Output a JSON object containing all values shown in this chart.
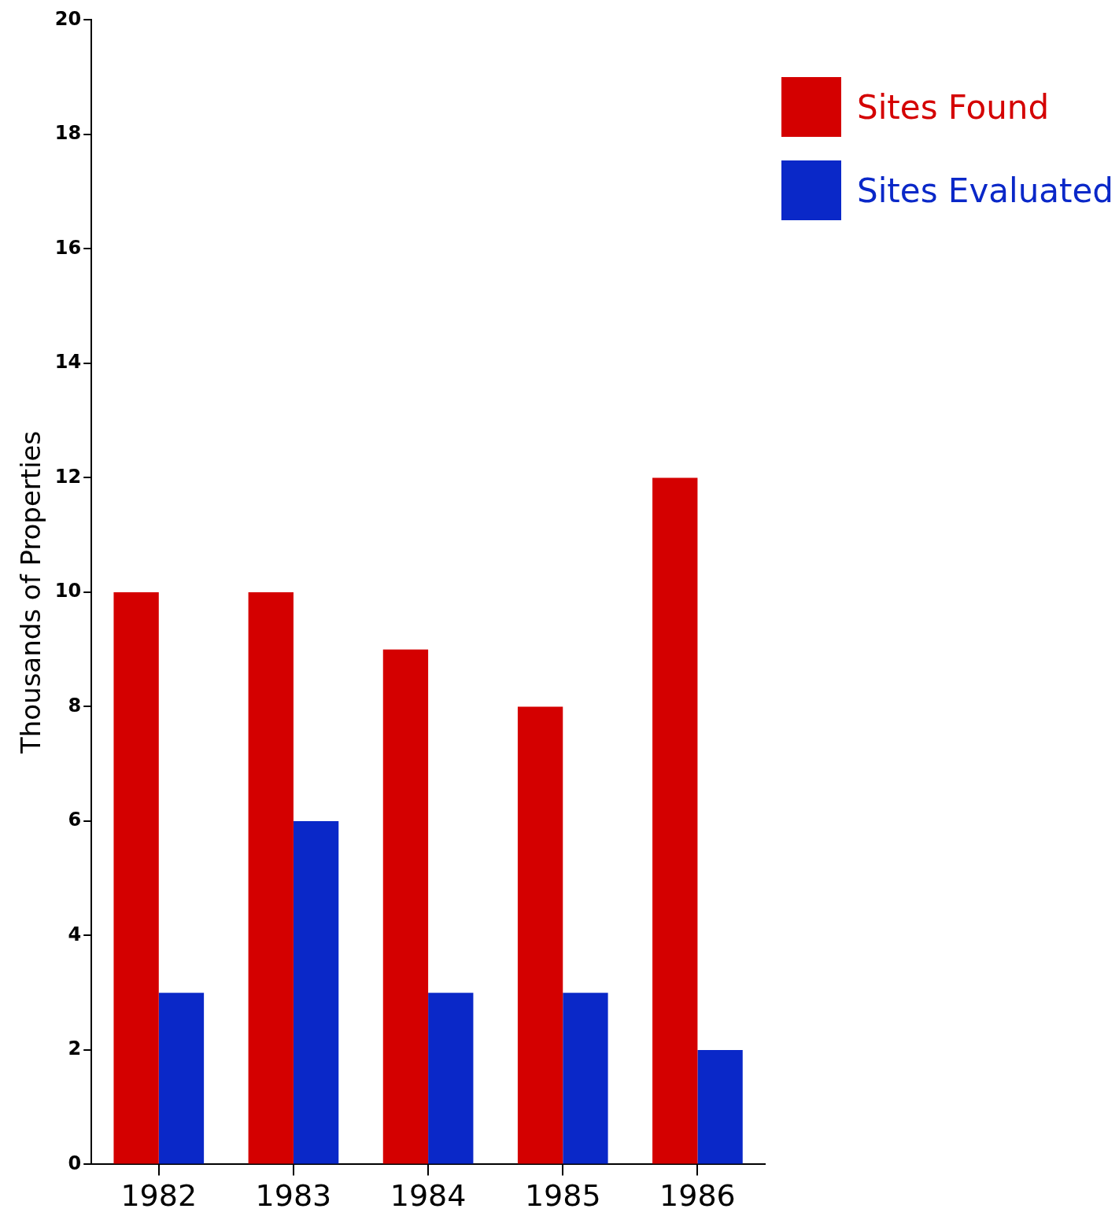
{
  "chart_data": {
    "type": "bar",
    "ylabel": "Thousands of Properties",
    "categories": [
      "1982",
      "1983",
      "1984",
      "1985",
      "1986"
    ],
    "series": [
      {
        "name": "Sites Found",
        "color": "#d40000",
        "values": [
          10,
          10,
          9,
          8,
          12
        ]
      },
      {
        "name": "Sites Evaluated",
        "color": "#0a28c8",
        "values": [
          3,
          6,
          3,
          3,
          2
        ]
      }
    ],
    "ylim": [
      0,
      20
    ],
    "yticks": [
      0,
      2,
      4,
      6,
      8,
      10,
      12,
      14,
      16,
      18,
      20
    ],
    "grid": false,
    "legend": "top right"
  }
}
